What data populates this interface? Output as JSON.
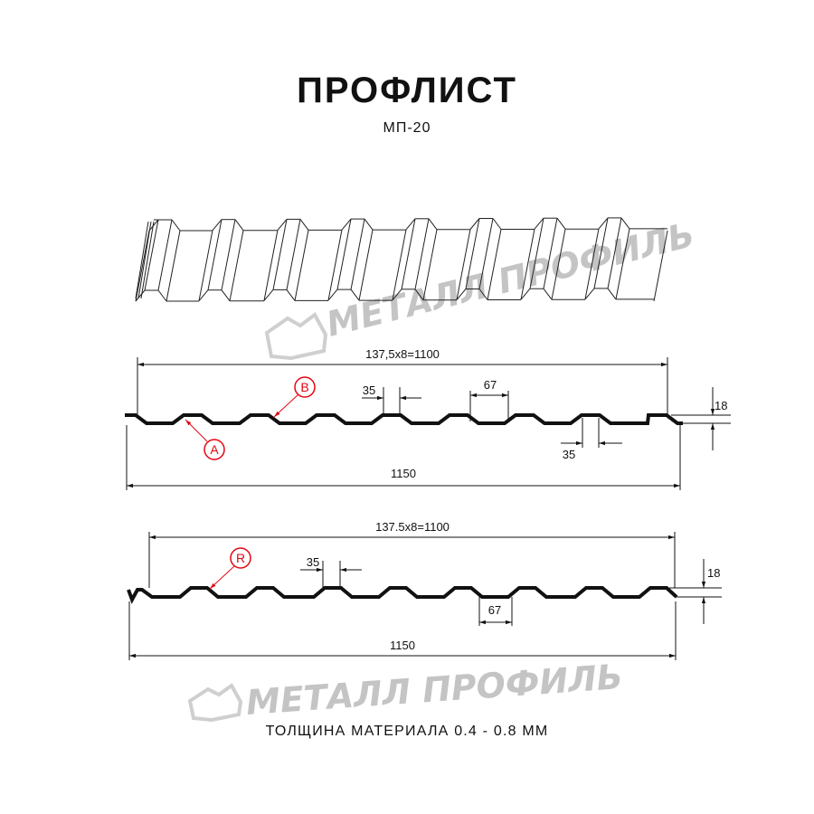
{
  "header": {
    "title": "ПРОФЛИСТ",
    "subtitle": "МП-20"
  },
  "watermark": {
    "text": "МЕТАЛЛ ПРОФИЛЬ",
    "color": "#c4c4c4"
  },
  "profile_a": {
    "span_label": "137,5x8=1100",
    "total_label": "1150",
    "top_width_label": "35",
    "bottom_width_label": "35",
    "valley_label": "67",
    "height_label": "18",
    "marker_a": "A",
    "marker_b": "B"
  },
  "profile_b": {
    "span_label": "137.5x8=1100",
    "total_label": "1150",
    "top_width_label": "35",
    "valley_label": "67",
    "height_label": "18",
    "marker_r": "R"
  },
  "colors": {
    "line": "#111111",
    "marker": "#e30613"
  },
  "footer": {
    "thickness": "ТОЛЩИНА МАТЕРИАЛА 0.4 - 0.8 ММ"
  }
}
